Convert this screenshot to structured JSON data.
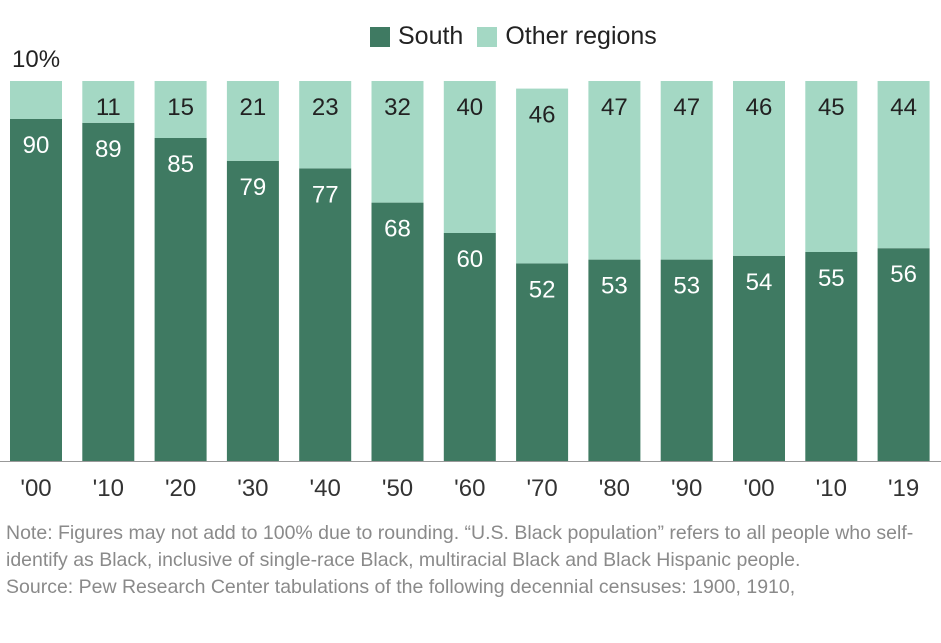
{
  "legend": {
    "south_label": "South",
    "other_label": "Other regions"
  },
  "colors": {
    "south": "#3f7a62",
    "other": "#a4d8c4",
    "label_light": "#ffffff",
    "label_dark": "#222222",
    "axis": "#999999"
  },
  "chart_data": {
    "type": "bar",
    "stacked": true,
    "percent_scale": true,
    "categories": [
      "'00",
      "'10",
      "'20",
      "'30",
      "'40",
      "'50",
      "'60",
      "'70",
      "'80",
      "'90",
      "'00",
      "'10",
      "'19"
    ],
    "series": [
      {
        "name": "South",
        "values": [
          90,
          89,
          85,
          79,
          77,
          68,
          60,
          52,
          53,
          53,
          54,
          55,
          56
        ]
      },
      {
        "name": "Other regions",
        "values": [
          10,
          11,
          15,
          21,
          23,
          32,
          40,
          46,
          47,
          47,
          46,
          45,
          44
        ]
      }
    ],
    "first_other_label": "10%",
    "ylim": [
      0,
      100
    ],
    "grid": false,
    "legend_position": "top"
  },
  "notes": {
    "note": "Note: Figures may not add to 100% due to rounding. “U.S. Black population” refers to all people who self-identify as Black, inclusive of single-race Black, multiracial Black and Black Hispanic people.",
    "source": "Source: Pew Research Center tabulations of the following decennial censuses: 1900, 1910,"
  }
}
